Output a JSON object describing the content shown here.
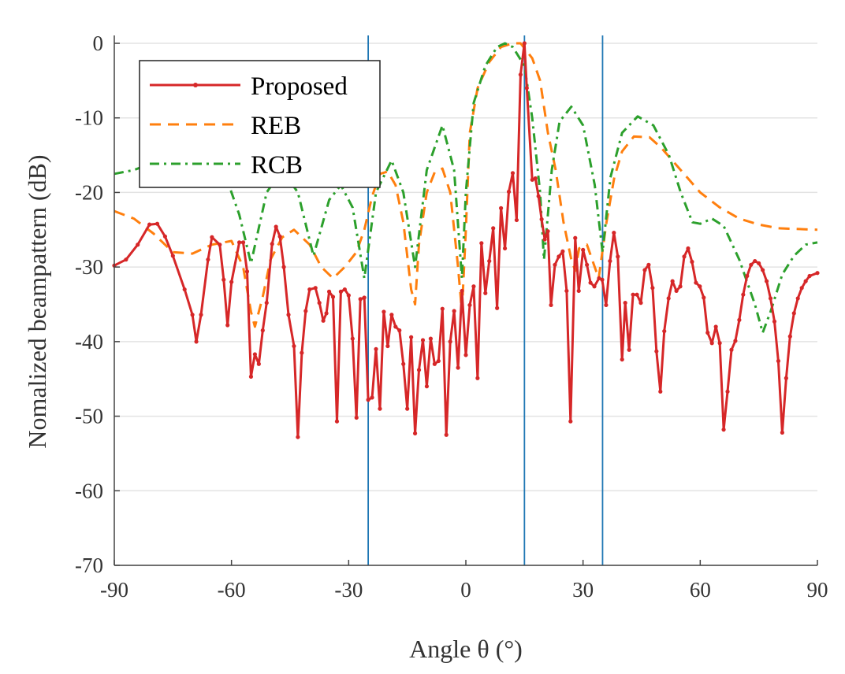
{
  "chart_data": {
    "type": "line",
    "title": "",
    "xlabel": "Angle θ (°)",
    "ylabel": "Nomalized beampattern (dB)",
    "xlim": [
      -90,
      90
    ],
    "ylim": [
      -70,
      0
    ],
    "xticks": [
      -90,
      -60,
      -30,
      0,
      30,
      60,
      90
    ],
    "yticks": [
      0,
      -10,
      -20,
      -30,
      -40,
      -50,
      -60,
      -70
    ],
    "xtick_labels": [
      "-90",
      "-60",
      "-30",
      "0",
      "30",
      "60",
      "90"
    ],
    "ytick_labels": [
      "0",
      "-10",
      "-20",
      "-30",
      "-40",
      "-50",
      "-60",
      "-70"
    ],
    "grid": "horizontal",
    "legend_position": "top-left",
    "vertical_lines": {
      "x": [
        -25,
        15,
        35
      ],
      "color": "#1f77b4"
    },
    "series": [
      {
        "name": "Proposed",
        "color": "#d62728",
        "style": "solid-with-markers",
        "points": [
          [
            -90,
            -29.8
          ],
          [
            -87,
            -29
          ],
          [
            -84,
            -27
          ],
          [
            -81,
            -24.3
          ],
          [
            -79,
            -24.2
          ],
          [
            -77,
            -25.9
          ],
          [
            -75,
            -28.5
          ],
          [
            -72,
            -33
          ],
          [
            -70,
            -36.4
          ],
          [
            -69,
            -40
          ],
          [
            -67.8,
            -36.4
          ],
          [
            -66,
            -29
          ],
          [
            -65,
            -26
          ],
          [
            -63,
            -27
          ],
          [
            -62,
            -31.7
          ],
          [
            -61,
            -37.8
          ],
          [
            -60,
            -32
          ],
          [
            -58,
            -26.7
          ],
          [
            -57,
            -26.7
          ],
          [
            -56,
            -30.6
          ],
          [
            -55,
            -44.7
          ],
          [
            -54,
            -41.7
          ],
          [
            -53,
            -43
          ],
          [
            -52,
            -38.5
          ],
          [
            -51,
            -34.8
          ],
          [
            -49.6,
            -26.9
          ],
          [
            -48.6,
            -24.6
          ],
          [
            -47.6,
            -25.9
          ],
          [
            -46.6,
            -30
          ],
          [
            -45.4,
            -36.4
          ],
          [
            -44,
            -40.6
          ],
          [
            -43,
            -52.8
          ],
          [
            -42,
            -41.5
          ],
          [
            -41,
            -35.9
          ],
          [
            -40,
            -33
          ],
          [
            -38.5,
            -32.8
          ],
          [
            -37.5,
            -34.8
          ],
          [
            -36.5,
            -37.2
          ],
          [
            -35.7,
            -36.2
          ],
          [
            -35,
            -33.3
          ],
          [
            -34,
            -34
          ],
          [
            -33,
            -50.7
          ],
          [
            -32,
            -33.3
          ],
          [
            -31,
            -33
          ],
          [
            -30,
            -33.8
          ],
          [
            -29,
            -39.6
          ],
          [
            -28,
            -50.2
          ],
          [
            -27,
            -34.3
          ],
          [
            -26,
            -34.1
          ],
          [
            -25,
            -47.8
          ],
          [
            -24,
            -47.5
          ],
          [
            -23,
            -41
          ],
          [
            -22,
            -49
          ],
          [
            -21,
            -36
          ],
          [
            -20,
            -40.6
          ],
          [
            -19,
            -36.4
          ],
          [
            -18,
            -38
          ],
          [
            -17,
            -38.5
          ],
          [
            -16,
            -43
          ],
          [
            -15,
            -49
          ],
          [
            -14,
            -39.4
          ],
          [
            -13,
            -52.3
          ],
          [
            -12,
            -43.8
          ],
          [
            -11,
            -39.8
          ],
          [
            -10,
            -46
          ],
          [
            -9,
            -39.6
          ],
          [
            -8,
            -43
          ],
          [
            -7,
            -42.6
          ],
          [
            -6,
            -35.6
          ],
          [
            -5,
            -52.5
          ],
          [
            -4,
            -40
          ],
          [
            -3,
            -35.9
          ],
          [
            -2,
            -43.5
          ],
          [
            -1,
            -33.2
          ],
          [
            0,
            -41.8
          ],
          [
            1,
            -35.1
          ],
          [
            2,
            -32.6
          ],
          [
            3,
            -44.9
          ],
          [
            4,
            -26.8
          ],
          [
            5,
            -33.5
          ],
          [
            6,
            -29.2
          ],
          [
            7,
            -24.8
          ],
          [
            8,
            -35.5
          ],
          [
            9,
            -22.1
          ],
          [
            10,
            -27.5
          ],
          [
            11,
            -19.9
          ],
          [
            12,
            -17.4
          ],
          [
            13,
            -23.7
          ],
          [
            14,
            -4.2
          ],
          [
            15,
            0
          ],
          [
            15.6,
            -6
          ],
          [
            17,
            -18.3
          ],
          [
            17.8,
            -18.1
          ],
          [
            18.6,
            -20.5
          ],
          [
            19.4,
            -23.6
          ],
          [
            20.2,
            -26.3
          ],
          [
            21,
            -25.2
          ],
          [
            21.8,
            -35.1
          ],
          [
            22.8,
            -29.7
          ],
          [
            23.8,
            -28.6
          ],
          [
            24.8,
            -27.9
          ],
          [
            25.8,
            -33.2
          ],
          [
            26.8,
            -50.7
          ],
          [
            28,
            -26.1
          ],
          [
            28.9,
            -33.2
          ],
          [
            30,
            -27.7
          ],
          [
            31,
            -29.7
          ],
          [
            31.9,
            -32.1
          ],
          [
            32.9,
            -32.6
          ],
          [
            34.1,
            -31.5
          ],
          [
            34.9,
            -31.7
          ],
          [
            35.9,
            -35.1
          ],
          [
            36.9,
            -29.2
          ],
          [
            37.9,
            -25.4
          ],
          [
            38.9,
            -28.6
          ],
          [
            40,
            -42.4
          ],
          [
            40.8,
            -34.8
          ],
          [
            41.8,
            -41.1
          ],
          [
            42.8,
            -33.7
          ],
          [
            43.8,
            -33.7
          ],
          [
            44.8,
            -34.8
          ],
          [
            45.8,
            -30.4
          ],
          [
            46.8,
            -29.7
          ],
          [
            47.8,
            -32.8
          ],
          [
            48.8,
            -41.3
          ],
          [
            49.8,
            -46.7
          ],
          [
            50.8,
            -38.6
          ],
          [
            51.9,
            -34.2
          ],
          [
            52.9,
            -31.9
          ],
          [
            53.9,
            -33.2
          ],
          [
            54.9,
            -32.6
          ],
          [
            55.9,
            -28.6
          ],
          [
            56.9,
            -27.5
          ],
          [
            57.9,
            -29.3
          ],
          [
            58.9,
            -32.1
          ],
          [
            59.9,
            -32.6
          ],
          [
            60.9,
            -34.1
          ],
          [
            61.9,
            -38.8
          ],
          [
            63,
            -40.2
          ],
          [
            64,
            -38
          ],
          [
            65,
            -40.2
          ],
          [
            66,
            -51.8
          ],
          [
            67,
            -46.7
          ],
          [
            68,
            -41.1
          ],
          [
            69,
            -39.9
          ],
          [
            70,
            -37.1
          ],
          [
            71,
            -33.7
          ],
          [
            72,
            -31.2
          ],
          [
            73,
            -29.7
          ],
          [
            74,
            -29.2
          ],
          [
            75,
            -29.5
          ],
          [
            76,
            -30.4
          ],
          [
            77,
            -31.9
          ],
          [
            78,
            -34.2
          ],
          [
            79,
            -37.3
          ],
          [
            80,
            -42.6
          ],
          [
            81,
            -52.2
          ],
          [
            82,
            -44.9
          ],
          [
            83,
            -39.3
          ],
          [
            84,
            -36.2
          ],
          [
            85,
            -34.2
          ],
          [
            86,
            -32.8
          ],
          [
            87,
            -31.9
          ],
          [
            88,
            -31.2
          ],
          [
            90,
            -30.8
          ]
        ]
      },
      {
        "name": "REB",
        "color": "#ff7f0e",
        "style": "dashed",
        "points": [
          [
            -90,
            -22.5
          ],
          [
            -85,
            -23.5
          ],
          [
            -80,
            -25.5
          ],
          [
            -75,
            -28
          ],
          [
            -70,
            -28.2
          ],
          [
            -65,
            -27
          ],
          [
            -60,
            -26.5
          ],
          [
            -57,
            -30
          ],
          [
            -55,
            -36
          ],
          [
            -54,
            -38
          ],
          [
            -52,
            -34
          ],
          [
            -50,
            -29
          ],
          [
            -47,
            -26
          ],
          [
            -44,
            -25
          ],
          [
            -40,
            -27
          ],
          [
            -37,
            -30
          ],
          [
            -34,
            -31.5
          ],
          [
            -31,
            -30
          ],
          [
            -28,
            -28
          ],
          [
            -26,
            -25
          ],
          [
            -24,
            -20.5
          ],
          [
            -22,
            -17.5
          ],
          [
            -20,
            -17.2
          ],
          [
            -18,
            -19
          ],
          [
            -16,
            -24
          ],
          [
            -14,
            -33
          ],
          [
            -13,
            -35
          ],
          [
            -12,
            -27
          ],
          [
            -10,
            -20
          ],
          [
            -8,
            -17.3
          ],
          [
            -6,
            -16.8
          ],
          [
            -4,
            -20
          ],
          [
            -2,
            -30
          ],
          [
            -1,
            -36
          ],
          [
            0,
            -25
          ],
          [
            1,
            -12
          ],
          [
            3,
            -6
          ],
          [
            6,
            -2.5
          ],
          [
            9,
            -0.5
          ],
          [
            12,
            0
          ],
          [
            14,
            0
          ],
          [
            17,
            -2
          ],
          [
            19,
            -5
          ],
          [
            21,
            -12
          ],
          [
            23,
            -17
          ],
          [
            25,
            -24
          ],
          [
            27,
            -29
          ],
          [
            28,
            -30.5
          ],
          [
            29,
            -27.5
          ],
          [
            31,
            -27
          ],
          [
            33,
            -30
          ],
          [
            34,
            -31.5
          ],
          [
            36,
            -24
          ],
          [
            38,
            -18
          ],
          [
            40,
            -14.5
          ],
          [
            43,
            -12.5
          ],
          [
            47,
            -12.6
          ],
          [
            50,
            -14
          ],
          [
            55,
            -17
          ],
          [
            60,
            -20
          ],
          [
            65,
            -22
          ],
          [
            70,
            -23.5
          ],
          [
            75,
            -24.3
          ],
          [
            80,
            -24.8
          ],
          [
            90,
            -25
          ]
        ]
      },
      {
        "name": "RCB",
        "color": "#2ca02c",
        "style": "dash-dot",
        "points": [
          [
            -90,
            -17.5
          ],
          [
            -85,
            -17
          ],
          [
            -80,
            -16
          ],
          [
            -73,
            -13.5
          ],
          [
            -67,
            -14
          ],
          [
            -62,
            -17
          ],
          [
            -58,
            -23
          ],
          [
            -55,
            -29.5
          ],
          [
            -51,
            -20
          ],
          [
            -47,
            -17
          ],
          [
            -43,
            -20
          ],
          [
            -39,
            -28.5
          ],
          [
            -35,
            -21
          ],
          [
            -32,
            -19
          ],
          [
            -29,
            -22
          ],
          [
            -26,
            -31.5
          ],
          [
            -23,
            -20
          ],
          [
            -19,
            -15.7
          ],
          [
            -16,
            -20
          ],
          [
            -13,
            -30
          ],
          [
            -10,
            -17
          ],
          [
            -6,
            -11
          ],
          [
            -3,
            -17
          ],
          [
            -1,
            -31.5
          ],
          [
            0,
            -20
          ],
          [
            2,
            -8
          ],
          [
            5,
            -3
          ],
          [
            8,
            -0.5
          ],
          [
            10,
            0
          ],
          [
            12,
            -0.5
          ],
          [
            15,
            -3
          ],
          [
            17,
            -10
          ],
          [
            19,
            -20
          ],
          [
            20,
            -29
          ],
          [
            22,
            -17
          ],
          [
            24,
            -10.5
          ],
          [
            27,
            -8.5
          ],
          [
            30,
            -11
          ],
          [
            33,
            -19
          ],
          [
            35,
            -28
          ],
          [
            37,
            -18
          ],
          [
            40,
            -12
          ],
          [
            44,
            -9.8
          ],
          [
            48,
            -11
          ],
          [
            52,
            -15
          ],
          [
            55,
            -20
          ],
          [
            58,
            -24
          ],
          [
            60,
            -24.2
          ],
          [
            63,
            -23.5
          ],
          [
            66,
            -24.5
          ],
          [
            70,
            -29
          ],
          [
            74,
            -35
          ],
          [
            76,
            -38.8
          ],
          [
            78,
            -36
          ],
          [
            81,
            -31
          ],
          [
            84,
            -28.5
          ],
          [
            87,
            -27
          ],
          [
            90,
            -26.7
          ]
        ]
      }
    ]
  }
}
